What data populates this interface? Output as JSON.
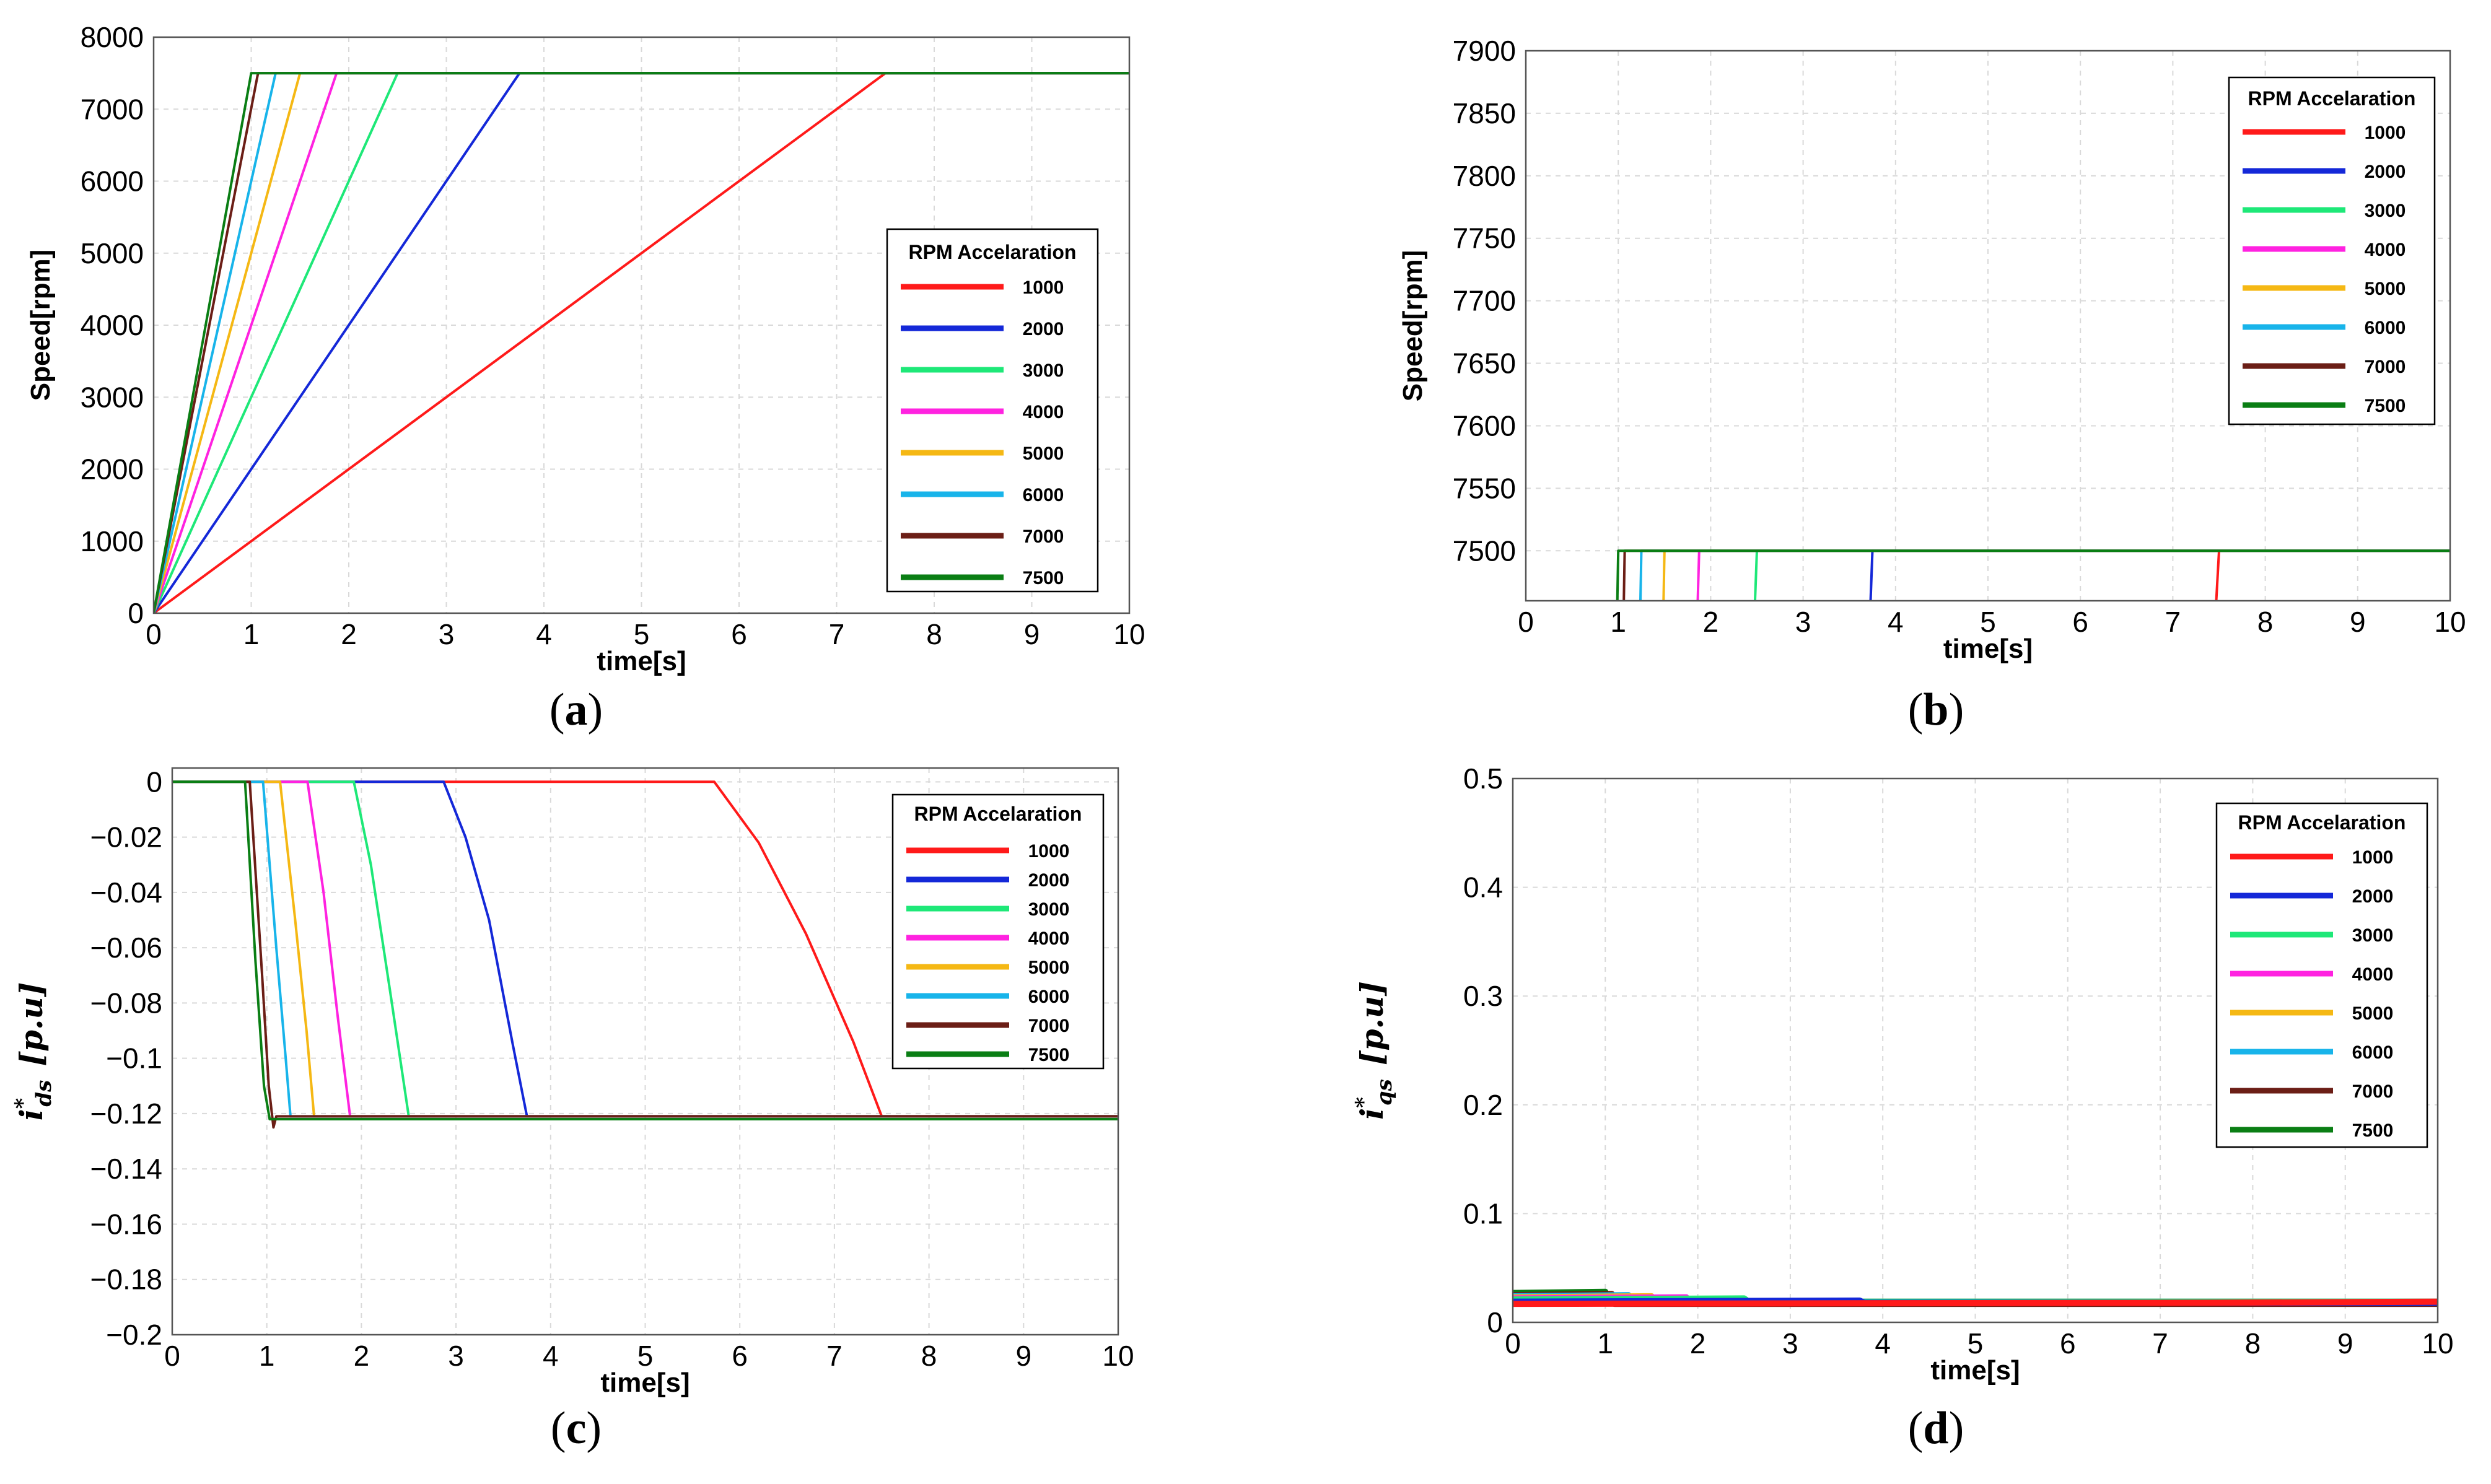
{
  "colors": {
    "1000": "#ff1a1a",
    "2000": "#1428d8",
    "3000": "#1ee878",
    "4000": "#ff22e0",
    "5000": "#f5b814",
    "6000": "#18b4ea",
    "7000": "#6b1e16",
    "7500": "#0a7e14",
    "grid": "#d9d9d9",
    "axis": "#000000"
  },
  "legend": {
    "title": "RPM Accelaration",
    "items": [
      "1000",
      "2000",
      "3000",
      "4000",
      "5000",
      "6000",
      "7000",
      "7500"
    ]
  },
  "chart_data": [
    {
      "id": "a",
      "type": "line",
      "panel_label": "a",
      "xlabel": "time[s]",
      "ylabel": "Speed[rpm]",
      "xlim": [
        0,
        10
      ],
      "ylim": [
        0,
        8000
      ],
      "xticks": [
        0,
        1,
        2,
        3,
        4,
        5,
        6,
        7,
        8,
        9,
        10
      ],
      "yticks": [
        0,
        1000,
        2000,
        3000,
        4000,
        5000,
        6000,
        7000,
        8000
      ],
      "ytick_labels": [
        "0",
        "1000",
        "2000",
        "3000",
        "4000",
        "5000",
        "6000",
        "7000",
        "8000"
      ],
      "legend_position": "center-right",
      "series": [
        {
          "name": "1000",
          "points": [
            [
              0,
              0
            ],
            [
              7.5,
              7500
            ],
            [
              10,
              7500
            ]
          ]
        },
        {
          "name": "2000",
          "points": [
            [
              0,
              0
            ],
            [
              3.75,
              7500
            ],
            [
              10,
              7500
            ]
          ]
        },
        {
          "name": "3000",
          "points": [
            [
              0,
              0
            ],
            [
              2.5,
              7500
            ],
            [
              10,
              7500
            ]
          ]
        },
        {
          "name": "4000",
          "points": [
            [
              0,
              0
            ],
            [
              1.875,
              7500
            ],
            [
              10,
              7500
            ]
          ]
        },
        {
          "name": "5000",
          "points": [
            [
              0,
              0
            ],
            [
              1.5,
              7500
            ],
            [
              10,
              7500
            ]
          ]
        },
        {
          "name": "6000",
          "points": [
            [
              0,
              0
            ],
            [
              1.25,
              7500
            ],
            [
              10,
              7500
            ]
          ]
        },
        {
          "name": "7000",
          "points": [
            [
              0,
              0
            ],
            [
              1.07,
              7500
            ],
            [
              10,
              7500
            ]
          ]
        },
        {
          "name": "7500",
          "points": [
            [
              0,
              0
            ],
            [
              1.0,
              7500
            ],
            [
              10,
              7500
            ]
          ]
        }
      ]
    },
    {
      "id": "b",
      "type": "line",
      "panel_label": "b",
      "xlabel": "time[s]",
      "ylabel": "Speed[rpm]",
      "xlim": [
        0,
        10
      ],
      "ylim": [
        7460,
        7900
      ],
      "xticks": [
        0,
        1,
        2,
        3,
        4,
        5,
        6,
        7,
        8,
        9,
        10
      ],
      "yticks": [
        7500,
        7550,
        7600,
        7650,
        7700,
        7750,
        7800,
        7850,
        7900
      ],
      "ytick_labels": [
        "7500",
        "7550",
        "7600",
        "7650",
        "7700",
        "7750",
        "7800",
        "7850",
        "7900"
      ],
      "legend_position": "top-right",
      "series": [
        {
          "name": "1000",
          "points": [
            [
              7.47,
              7460
            ],
            [
              7.5,
              7500
            ],
            [
              10,
              7500
            ]
          ]
        },
        {
          "name": "2000",
          "points": [
            [
              3.73,
              7460
            ],
            [
              3.75,
              7500
            ],
            [
              10,
              7500
            ]
          ]
        },
        {
          "name": "3000",
          "points": [
            [
              2.48,
              7460
            ],
            [
              2.5,
              7500
            ],
            [
              10,
              7500
            ]
          ]
        },
        {
          "name": "4000",
          "points": [
            [
              1.86,
              7460
            ],
            [
              1.875,
              7500
            ],
            [
              10,
              7500
            ]
          ]
        },
        {
          "name": "5000",
          "points": [
            [
              1.49,
              7460
            ],
            [
              1.5,
              7500
            ],
            [
              10,
              7500
            ]
          ]
        },
        {
          "name": "6000",
          "points": [
            [
              1.24,
              7460
            ],
            [
              1.25,
              7500
            ],
            [
              10,
              7500
            ]
          ]
        },
        {
          "name": "7000",
          "points": [
            [
              1.06,
              7460
            ],
            [
              1.07,
              7500
            ],
            [
              10,
              7500
            ]
          ]
        },
        {
          "name": "7500",
          "points": [
            [
              0.99,
              7460
            ],
            [
              1.0,
              7500
            ],
            [
              10,
              7500
            ]
          ]
        }
      ]
    },
    {
      "id": "c",
      "type": "line",
      "panel_label": "c",
      "xlabel": "time[s]",
      "ylabel_main": "i",
      "ylabel_sub": "ds",
      "ylabel_sup": "*",
      "ylabel_unit": "[p.u]",
      "xlim": [
        0,
        10
      ],
      "ylim": [
        -0.2,
        0.005
      ],
      "xticks": [
        0,
        1,
        2,
        3,
        4,
        5,
        6,
        7,
        8,
        9,
        10
      ],
      "yticks": [
        0,
        -0.02,
        -0.04,
        -0.06,
        -0.08,
        -0.1,
        -0.12,
        -0.14,
        -0.16,
        -0.18,
        -0.2
      ],
      "ytick_labels": [
        "0",
        "−0.02",
        "−0.04",
        "−0.06",
        "−0.08",
        "−0.1",
        "−0.12",
        "−0.14",
        "−0.16",
        "−0.18",
        "−0.2"
      ],
      "legend_position": "top-right",
      "series": [
        {
          "name": "1000",
          "points": [
            [
              -0.1,
              0
            ],
            [
              5.73,
              0
            ],
            [
              6.2,
              -0.022
            ],
            [
              6.7,
              -0.055
            ],
            [
              7.2,
              -0.094
            ],
            [
              7.5,
              -0.121
            ],
            [
              10,
              -0.121
            ]
          ]
        },
        {
          "name": "2000",
          "points": [
            [
              -0.1,
              0
            ],
            [
              2.87,
              0
            ],
            [
              3.1,
              -0.02
            ],
            [
              3.35,
              -0.05
            ],
            [
              3.6,
              -0.095
            ],
            [
              3.75,
              -0.121
            ],
            [
              10,
              -0.121
            ]
          ]
        },
        {
          "name": "3000",
          "points": [
            [
              -0.1,
              0
            ],
            [
              1.92,
              0
            ],
            [
              2.1,
              -0.03
            ],
            [
              2.3,
              -0.075
            ],
            [
              2.5,
              -0.121
            ],
            [
              10,
              -0.121
            ]
          ]
        },
        {
          "name": "4000",
          "points": [
            [
              -0.1,
              0
            ],
            [
              1.43,
              0
            ],
            [
              1.6,
              -0.04
            ],
            [
              1.75,
              -0.085
            ],
            [
              1.88,
              -0.121
            ],
            [
              10,
              -0.121
            ]
          ]
        },
        {
          "name": "5000",
          "points": [
            [
              -0.1,
              0
            ],
            [
              1.14,
              0
            ],
            [
              1.3,
              -0.05
            ],
            [
              1.42,
              -0.09
            ],
            [
              1.5,
              -0.121
            ],
            [
              10,
              -0.121
            ]
          ]
        },
        {
          "name": "6000",
          "points": [
            [
              -0.1,
              0
            ],
            [
              0.96,
              0
            ],
            [
              1.1,
              -0.06
            ],
            [
              1.2,
              -0.1
            ],
            [
              1.25,
              -0.121
            ],
            [
              10,
              -0.121
            ]
          ]
        },
        {
          "name": "7000",
          "points": [
            [
              -0.1,
              0
            ],
            [
              0.82,
              0
            ],
            [
              0.95,
              -0.07
            ],
            [
              1.02,
              -0.11
            ],
            [
              1.07,
              -0.125
            ],
            [
              1.1,
              -0.121
            ],
            [
              10,
              -0.121
            ]
          ]
        },
        {
          "name": "7500",
          "points": [
            [
              -0.1,
              0
            ],
            [
              0.77,
              0
            ],
            [
              0.88,
              -0.065
            ],
            [
              0.97,
              -0.11
            ],
            [
              1.03,
              -0.122
            ],
            [
              10,
              -0.122
            ]
          ]
        }
      ]
    },
    {
      "id": "d",
      "type": "line",
      "panel_label": "d",
      "xlabel": "time[s]",
      "ylabel_main": "i",
      "ylabel_sub": "qs",
      "ylabel_sup": "*",
      "ylabel_unit": "[p.u]",
      "xlim": [
        0,
        10
      ],
      "ylim": [
        0,
        0.5
      ],
      "xticks": [
        0,
        1,
        2,
        3,
        4,
        5,
        6,
        7,
        8,
        9,
        10
      ],
      "yticks": [
        0,
        0.1,
        0.2,
        0.3,
        0.4,
        0.5
      ],
      "ytick_labels": [
        "0",
        "0.1",
        "0.2",
        "0.3",
        "0.4",
        "0.5"
      ],
      "legend_position": "top-right",
      "series": [
        {
          "name": "7500",
          "points": [
            [
              0,
              0.027
            ],
            [
              1.0,
              0.028
            ],
            [
              1.05,
              0.019
            ],
            [
              10,
              0.018
            ]
          ]
        },
        {
          "name": "7000",
          "points": [
            [
              0,
              0.025
            ],
            [
              1.07,
              0.026
            ],
            [
              1.1,
              0.017
            ],
            [
              10,
              0.017
            ]
          ]
        },
        {
          "name": "6000",
          "points": [
            [
              0,
              0.024
            ],
            [
              1.25,
              0.025
            ],
            [
              1.3,
              0.019
            ],
            [
              10,
              0.018
            ]
          ]
        },
        {
          "name": "5000",
          "points": [
            [
              0,
              0.023
            ],
            [
              1.5,
              0.024
            ],
            [
              1.55,
              0.019
            ],
            [
              10,
              0.019
            ]
          ]
        },
        {
          "name": "4000",
          "points": [
            [
              0,
              0.022
            ],
            [
              1.875,
              0.023
            ],
            [
              1.9,
              0.019
            ],
            [
              10,
              0.019
            ]
          ]
        },
        {
          "name": "3000",
          "points": [
            [
              0,
              0.021
            ],
            [
              2.5,
              0.022
            ],
            [
              2.55,
              0.019
            ],
            [
              10,
              0.019
            ]
          ]
        },
        {
          "name": "2000",
          "points": [
            [
              0,
              0.019
            ],
            [
              3.75,
              0.02
            ],
            [
              3.8,
              0.018
            ],
            [
              10,
              0.018
            ]
          ]
        },
        {
          "name": "1000",
          "points": [
            [
              0,
              0.017
            ],
            [
              7.5,
              0.018
            ],
            [
              10,
              0.019
            ]
          ]
        }
      ]
    }
  ]
}
